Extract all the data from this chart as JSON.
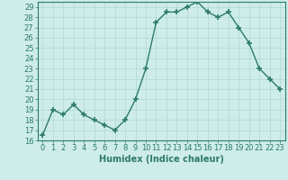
{
  "xlabel": "Humidex (Indice chaleur)",
  "ylabel": "",
  "x": [
    0,
    1,
    2,
    3,
    4,
    5,
    6,
    7,
    8,
    9,
    10,
    11,
    12,
    13,
    14,
    15,
    16,
    17,
    18,
    19,
    20,
    21,
    22,
    23
  ],
  "y": [
    16.5,
    19.0,
    18.5,
    19.5,
    18.5,
    18.0,
    17.5,
    17.0,
    18.0,
    20.0,
    23.0,
    27.5,
    28.5,
    28.5,
    29.0,
    29.5,
    28.5,
    28.0,
    28.5,
    27.0,
    25.5,
    23.0,
    22.0,
    21.0
  ],
  "ylim": [
    16,
    29.5
  ],
  "yticks": [
    16,
    17,
    18,
    19,
    20,
    21,
    22,
    23,
    24,
    25,
    26,
    27,
    28,
    29
  ],
  "xticks": [
    0,
    1,
    2,
    3,
    4,
    5,
    6,
    7,
    8,
    9,
    10,
    11,
    12,
    13,
    14,
    15,
    16,
    17,
    18,
    19,
    20,
    21,
    22,
    23
  ],
  "line_color": "#2d7a6b",
  "marker": "+",
  "marker_size": 4,
  "marker_lw": 1.2,
  "line_width": 1.0,
  "bg_color": "#cdecea",
  "grid_color": "#b0d8d4",
  "xlabel_fontsize": 7,
  "tick_fontsize": 6
}
